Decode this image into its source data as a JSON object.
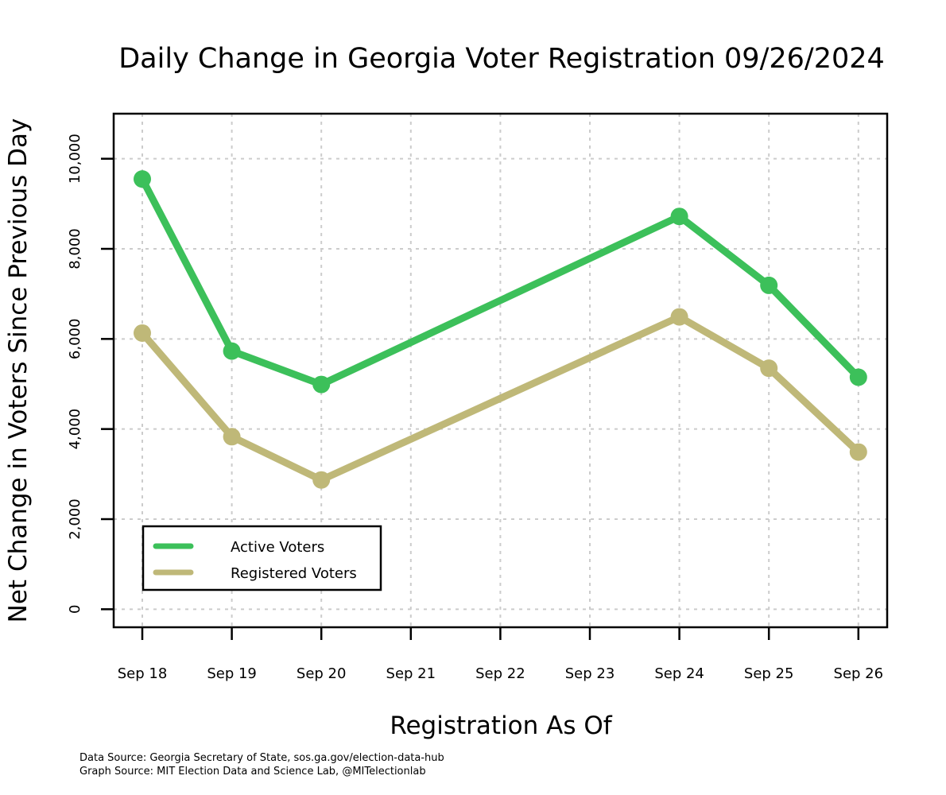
{
  "chart_data": {
    "type": "line",
    "title": "Daily Change in Georgia Voter Registration 09/26/2024",
    "xlabel": "Registration As Of",
    "ylabel": "Net Change in Voters Since Previous Day",
    "categories": [
      "Sep 18",
      "Sep 19",
      "Sep 20",
      "Sep 21",
      "Sep 22",
      "Sep 23",
      "Sep 24",
      "Sep 25",
      "Sep 26"
    ],
    "x": [
      0,
      1,
      2,
      6,
      7,
      8
    ],
    "series": [
      {
        "name": "Active Voters",
        "color": "#3cc05a",
        "values": [
          9550,
          5730,
          4990,
          8720,
          7190,
          5150
        ]
      },
      {
        "name": "Registered Voters",
        "color": "#bfb878",
        "values": [
          6130,
          3830,
          2870,
          6490,
          5350,
          3490
        ]
      }
    ],
    "yticks": [
      0,
      2000,
      4000,
      6000,
      8000,
      10000
    ],
    "ytick_labels": [
      "0",
      "2,000",
      "4,000",
      "6,000",
      "8,000",
      "10,000"
    ],
    "ylim": [
      -400,
      11000
    ],
    "grid": true,
    "legend": "bottom-left"
  },
  "footer": {
    "data_source": "Data Source: Georgia Secretary of State, sos.ga.gov/election-data-hub",
    "graph_source": "Graph Source: MIT Election Data and Science Lab, @MITelectionlab"
  }
}
